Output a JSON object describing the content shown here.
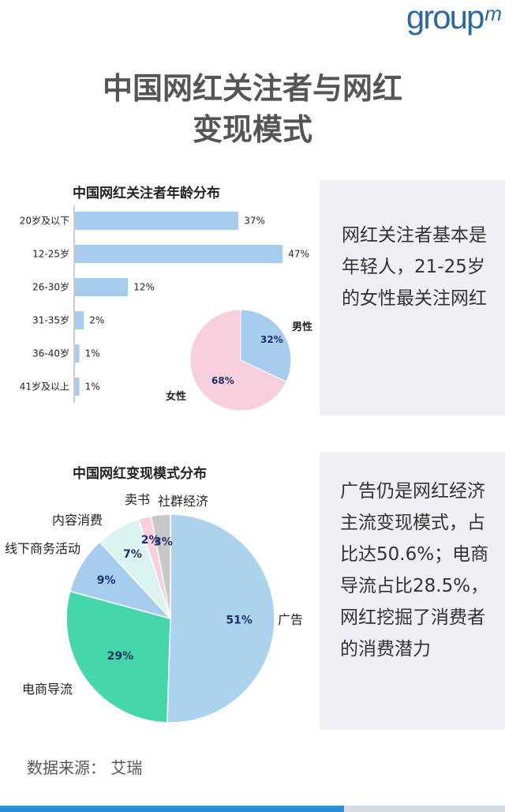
{
  "logo": {
    "text": "group",
    "mark": "m"
  },
  "title": {
    "line1": "中国网红关注者与网红",
    "line2": "变现模式"
  },
  "chart_data": [
    {
      "type": "bar",
      "title": "中国网红关注者年龄分布",
      "categories": [
        "20岁及以下",
        "12-25岁",
        "26-30岁",
        "31-35岁",
        "36-40岁",
        "41岁及以上"
      ],
      "values": [
        37,
        47,
        12,
        2,
        1,
        1
      ],
      "value_suffix": "%",
      "orientation": "horizontal",
      "bar_color": "#a6cdee",
      "inset_pie": {
        "type": "pie",
        "slices": [
          {
            "label": "男性",
            "value": 32,
            "display": "32%",
            "color": "#a6cdee"
          },
          {
            "label": "女性",
            "value": 68,
            "display": "68%",
            "color": "#f8cfdc"
          }
        ]
      }
    },
    {
      "type": "pie",
      "title": "中国网红变现模式分布",
      "slices": [
        {
          "label": "广告",
          "value": 51,
          "display": "51%",
          "color": "#abd3ee"
        },
        {
          "label": "电商导流",
          "value": 29,
          "display": "29%",
          "color": "#45d6a9"
        },
        {
          "label": "线下商务活动",
          "value": 9,
          "display": "9%",
          "color": "#a6cdee"
        },
        {
          "label": "内容消费",
          "value": 7,
          "display": "7%",
          "color": "#dcf4ef"
        },
        {
          "label": "卖书",
          "value": 2,
          "display": "2%",
          "color": "#f8cfdc"
        },
        {
          "label": "社群经济",
          "value": 3,
          "display": "3%",
          "color": "#c8c8c8"
        }
      ]
    }
  ],
  "side_text": {
    "box1": "网红关注者基本是年轻人，21-25岁的女性最关注网红",
    "box2": "广告仍是网红经济主流变现模式，占比达50.6%；电商导流占比28.5%，网红挖掘了消费者的消费潜力"
  },
  "source": "数据来源： 艾瑞"
}
